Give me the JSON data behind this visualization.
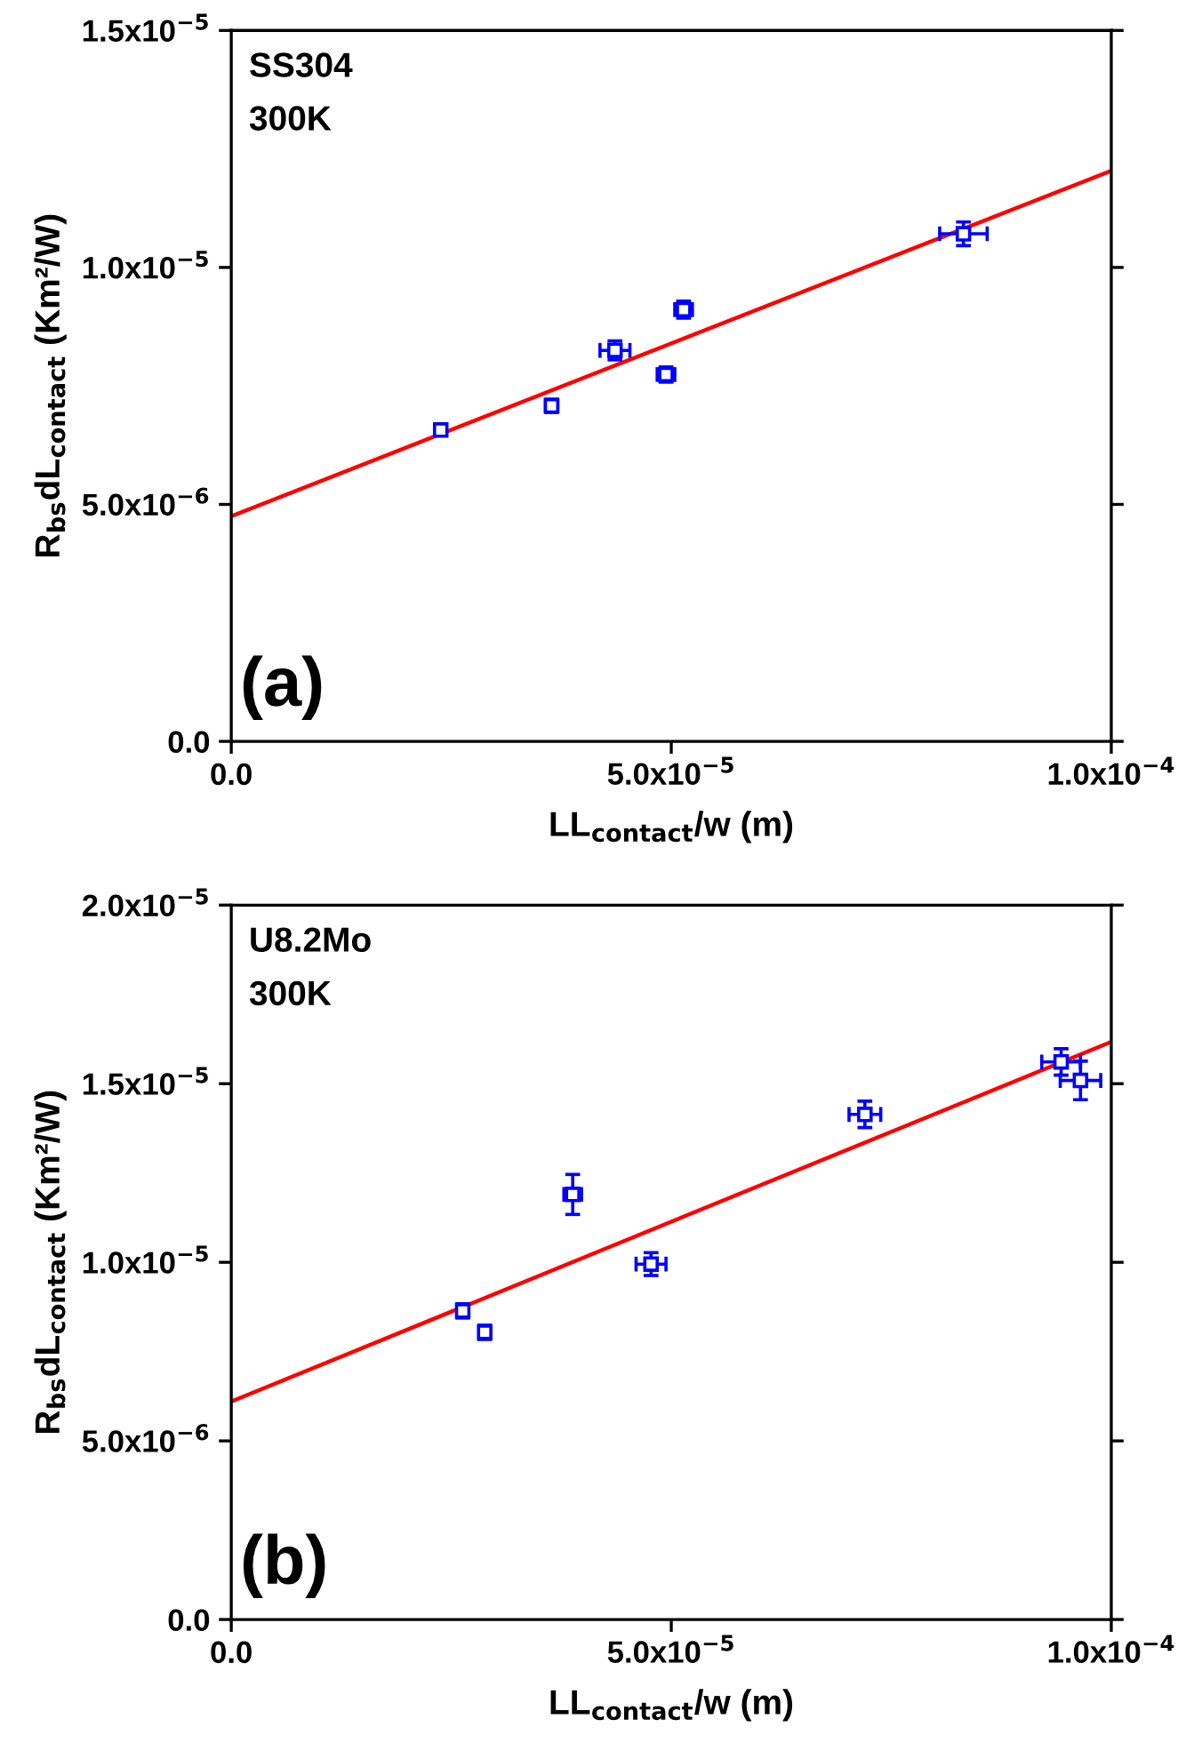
{
  "chart_data": [
    {
      "type": "scatter",
      "xlabel": "LL$_{contact}$/w (m)",
      "ylabel": "R$_{bs}$dL$_{contact}$ (Km²/W)",
      "annotations": [
        "SS304",
        "300K",
        "(a)"
      ],
      "xlim": [
        0,
        0.0001
      ],
      "ylim": [
        0,
        1.5e-05
      ],
      "xticks": [
        {
          "value": 0,
          "label": "0.0"
        },
        {
          "value": 5e-05,
          "label": "5.0x10$^{−5}$"
        },
        {
          "value": 0.0001,
          "label": "1.0x10$^{−4}$"
        }
      ],
      "yticks": [
        {
          "value": 0,
          "label": "0.0"
        },
        {
          "value": 5e-06,
          "label": "5.0x10$^{−6}$"
        },
        {
          "value": 1e-05,
          "label": "1.0x10$^{−5}$"
        },
        {
          "value": 1.5e-05,
          "label": "1.5x10$^{−5}$"
        }
      ],
      "grid": false,
      "series": [
        {
          "marker": "square",
          "color": "#0000ff",
          "x": [
            2.38e-05,
            3.64e-05,
            4.36e-05,
            4.94e-05,
            5.14e-05,
            8.32e-05
          ],
          "values": [
            6.57e-06,
            7.08e-06,
            8.25e-06,
            7.74e-06,
            9.11e-06,
            1.071e-05
          ],
          "errors": [
            1.1e-07,
            1.4e-07,
            2e-07,
            1.6e-07,
            1.8e-07,
            2.5e-07
          ],
          "xerrors": [
            4e-07,
            7e-07,
            1.7e-06,
            1e-06,
            1e-06,
            2.7e-06
          ]
        },
        {
          "type": "line",
          "color": "#ff0000",
          "x": [
            0,
            0.0001
          ],
          "values": [
            4.75e-06,
            1.204e-05
          ]
        }
      ]
    },
    {
      "type": "scatter",
      "xlabel": "LL$_{contact}$/w (m)",
      "ylabel": "R$_{bs}$dL$_{contact}$ (Km²/W)",
      "annotations": [
        "U8.2Mo",
        "300K",
        "(b)"
      ],
      "xlim": [
        0,
        0.0001
      ],
      "ylim": [
        0,
        2e-05
      ],
      "xticks": [
        {
          "value": 0,
          "label": "0.0"
        },
        {
          "value": 5e-05,
          "label": "5.0x10$^{−5}$"
        },
        {
          "value": 0.0001,
          "label": "1.0x10$^{−4}$"
        }
      ],
      "yticks": [
        {
          "value": 0,
          "label": "0.0"
        },
        {
          "value": 5e-06,
          "label": "5.0x10$^{−6}$"
        },
        {
          "value": 1e-05,
          "label": "1.0x10$^{−5}$"
        },
        {
          "value": 1.5e-05,
          "label": "1.5x10$^{−5}$"
        },
        {
          "value": 2e-05,
          "label": "2.0x10$^{−5}$"
        }
      ],
      "grid": false,
      "series": [
        {
          "marker": "square",
          "color": "#0000ff",
          "x": [
            2.63e-05,
            2.88e-05,
            3.88e-05,
            4.77e-05,
            7.2e-05,
            9.43e-05,
            9.65e-05
          ],
          "values": [
            8.64e-06,
            8.04e-06,
            1.19e-05,
            9.95e-06,
            1.414e-05,
            1.561e-05,
            1.509e-05
          ],
          "errors": [
            2e-07,
            2e-07,
            5.6e-07,
            3.2e-07,
            3.7e-07,
            3.7e-07,
            5.4e-07
          ],
          "xerrors": [
            5e-07,
            5e-07,
            1e-06,
            1.7e-06,
            1.8e-06,
            2.2e-06,
            2.3e-06
          ]
        },
        {
          "type": "line",
          "color": "#ff0000",
          "x": [
            0,
            0.0001
          ],
          "values": [
            6.1e-06,
            1.617e-05
          ]
        }
      ]
    }
  ]
}
